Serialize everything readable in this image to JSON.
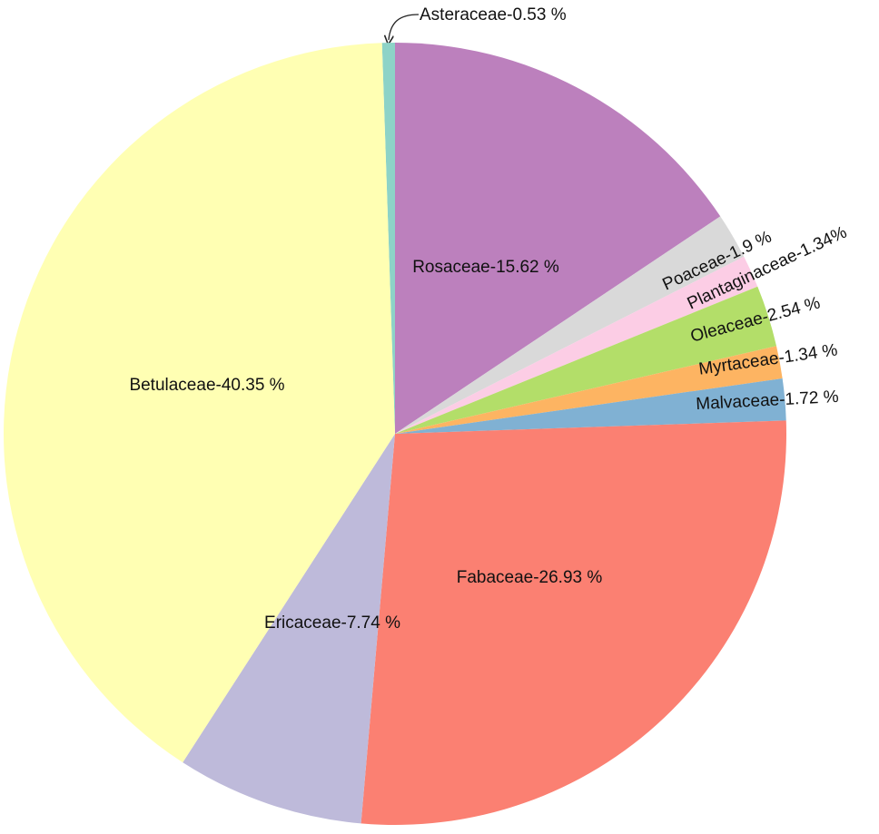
{
  "chart_data": {
    "type": "pie",
    "values": [
      0.53,
      15.62,
      1.9,
      1.34,
      2.54,
      1.34,
      1.72,
      26.93,
      7.74,
      40.35
    ],
    "value_labels": [
      "Asteraceae-0.53 %",
      "Rosaceae-15.62 %",
      "Poaceae-1.9 %",
      "Plantaginaceae-1.34%",
      "Oleaceae-2.54 %",
      "Myrtaceae-1.34 %",
      "Malvaceae-1.72 %",
      "Fabaceae-26.93 %",
      "Ericaceae-7.74 %",
      "Betulaceae-40.35 %"
    ],
    "colors": [
      "#8dd3c7",
      "#bc80bd",
      "#d9d9d9",
      "#fccde5",
      "#b3de69",
      "#fdb462",
      "#80b1d3",
      "#fb8072",
      "#bebada",
      "#ffffb3"
    ]
  }
}
